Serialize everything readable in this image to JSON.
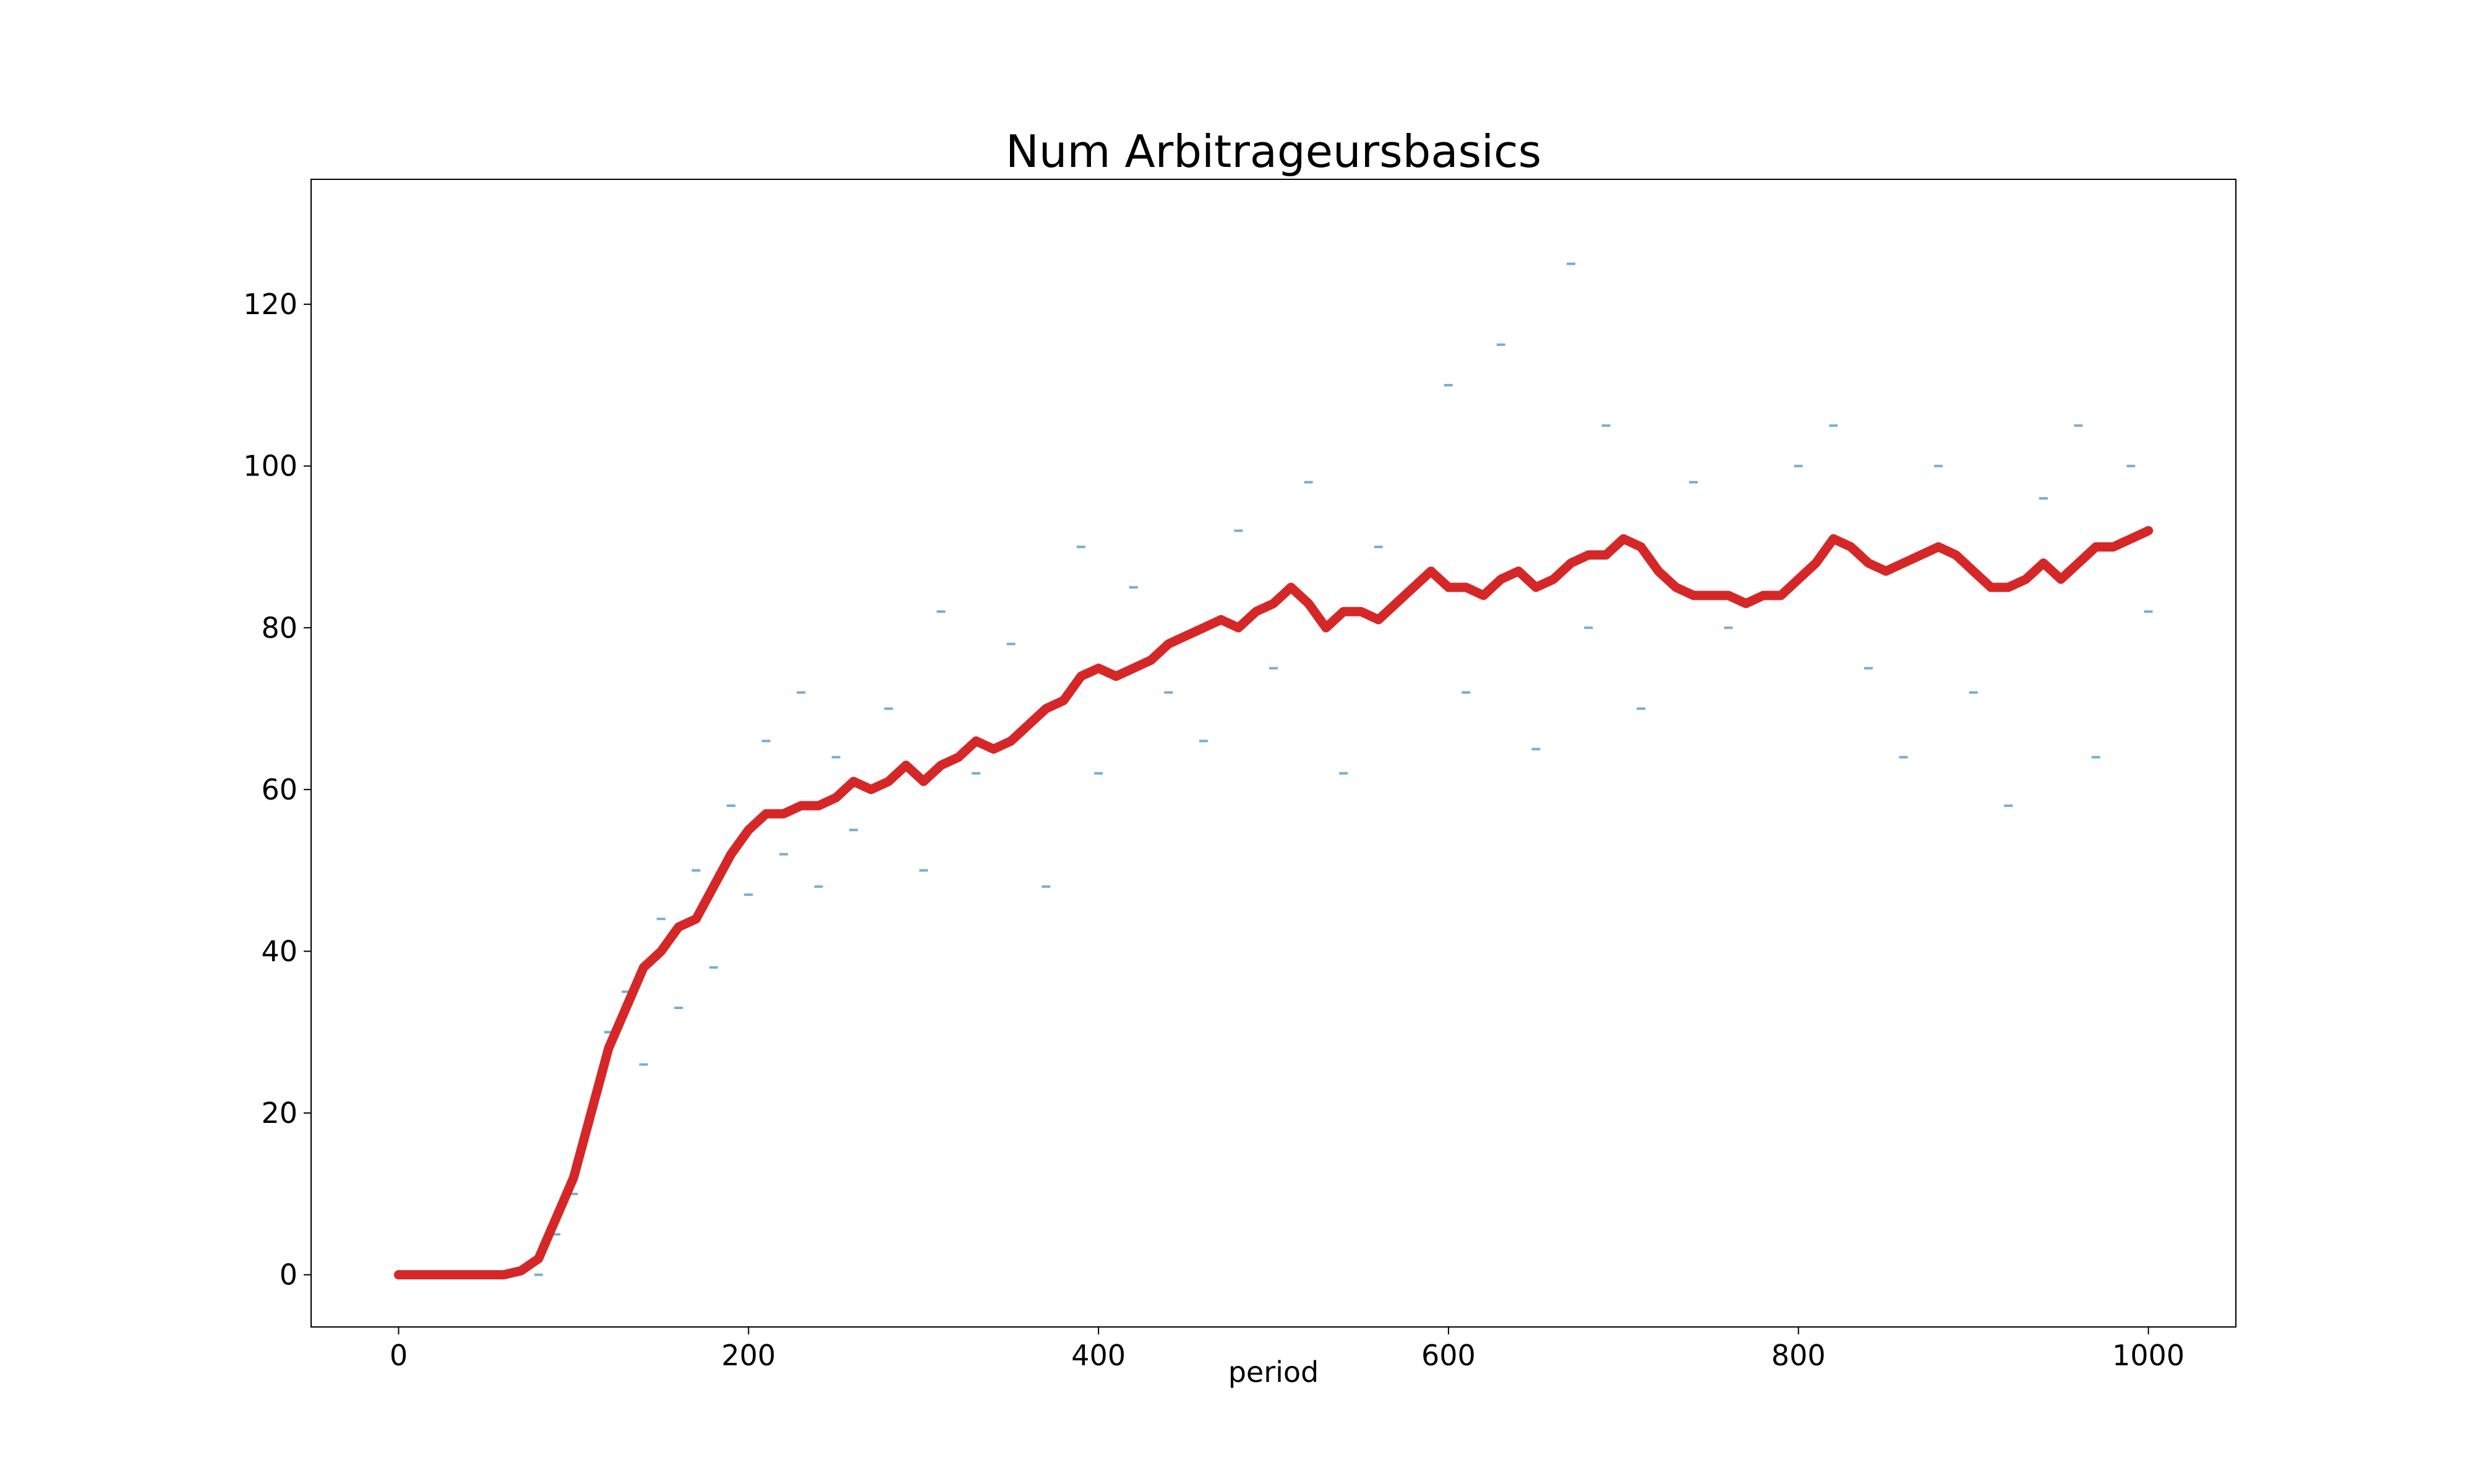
{
  "chart_data": {
    "type": "line",
    "title": "Num Arbitrageursbasics",
    "xlabel": "period",
    "xlim": [
      -50,
      1050
    ],
    "xticks": [
      0,
      200,
      400,
      600,
      800,
      1000
    ],
    "ylim": [
      -6.45,
      135.45
    ],
    "yticks": [
      0,
      20,
      40,
      60,
      80,
      100,
      120
    ],
    "grid": false,
    "series": [
      {
        "type": "scatter",
        "color": "#1f77b4",
        "x": [
          80,
          90,
          100,
          110,
          120,
          130,
          140,
          150,
          160,
          170,
          180,
          190,
          200,
          210,
          220,
          230,
          240,
          250,
          260,
          280,
          300,
          310,
          330,
          350,
          370,
          390,
          400,
          420,
          440,
          460,
          480,
          500,
          520,
          540,
          560,
          600,
          610,
          630,
          650,
          670,
          680,
          690,
          710,
          740,
          760,
          800,
          820,
          840,
          860,
          880,
          900,
          920,
          940,
          960,
          970,
          990,
          1000
        ],
        "values": [
          0,
          5,
          10,
          20,
          30,
          35,
          26,
          44,
          33,
          50,
          38,
          58,
          47,
          66,
          52,
          72,
          48,
          64,
          55,
          70,
          50,
          82,
          62,
          78,
          48,
          90,
          62,
          85,
          72,
          66,
          92,
          75,
          98,
          62,
          90,
          110,
          72,
          115,
          65,
          125,
          80,
          105,
          70,
          98,
          80,
          100,
          105,
          75,
          64,
          100,
          72,
          58,
          96,
          105,
          64,
          100,
          82
        ]
      },
      {
        "type": "line",
        "color": "#d62728",
        "x": [
          0,
          10,
          20,
          30,
          40,
          50,
          60,
          70,
          80,
          90,
          100,
          110,
          120,
          130,
          140,
          150,
          160,
          170,
          180,
          190,
          200,
          210,
          220,
          230,
          240,
          250,
          260,
          270,
          280,
          290,
          300,
          310,
          320,
          330,
          340,
          350,
          360,
          370,
          380,
          390,
          400,
          410,
          420,
          430,
          440,
          450,
          460,
          470,
          480,
          490,
          500,
          510,
          520,
          530,
          540,
          550,
          560,
          570,
          580,
          590,
          600,
          610,
          620,
          630,
          640,
          650,
          660,
          670,
          680,
          690,
          700,
          710,
          720,
          730,
          740,
          750,
          760,
          770,
          780,
          790,
          800,
          810,
          820,
          830,
          840,
          850,
          860,
          870,
          880,
          890,
          900,
          910,
          920,
          930,
          940,
          950,
          960,
          970,
          980,
          990,
          1000
        ],
        "values": [
          0,
          0,
          0,
          0,
          0,
          0,
          0,
          0.5,
          2,
          7,
          12,
          20,
          28,
          33,
          38,
          40,
          43,
          44,
          48,
          52,
          55,
          57,
          57,
          58,
          58,
          59,
          61,
          60,
          61,
          63,
          61,
          63,
          64,
          66,
          65,
          66,
          68,
          70,
          71,
          74,
          75,
          74,
          75,
          76,
          78,
          79,
          80,
          81,
          80,
          82,
          83,
          85,
          83,
          80,
          82,
          82,
          81,
          83,
          85,
          87,
          85,
          85,
          84,
          86,
          87,
          85,
          86,
          88,
          89,
          89,
          91,
          90,
          87,
          85,
          84,
          84,
          84,
          83,
          84,
          84,
          86,
          88,
          91,
          90,
          88,
          87,
          88,
          89,
          90,
          89,
          87,
          85,
          85,
          86,
          88,
          86,
          88,
          90,
          90,
          91,
          92
        ]
      }
    ]
  }
}
